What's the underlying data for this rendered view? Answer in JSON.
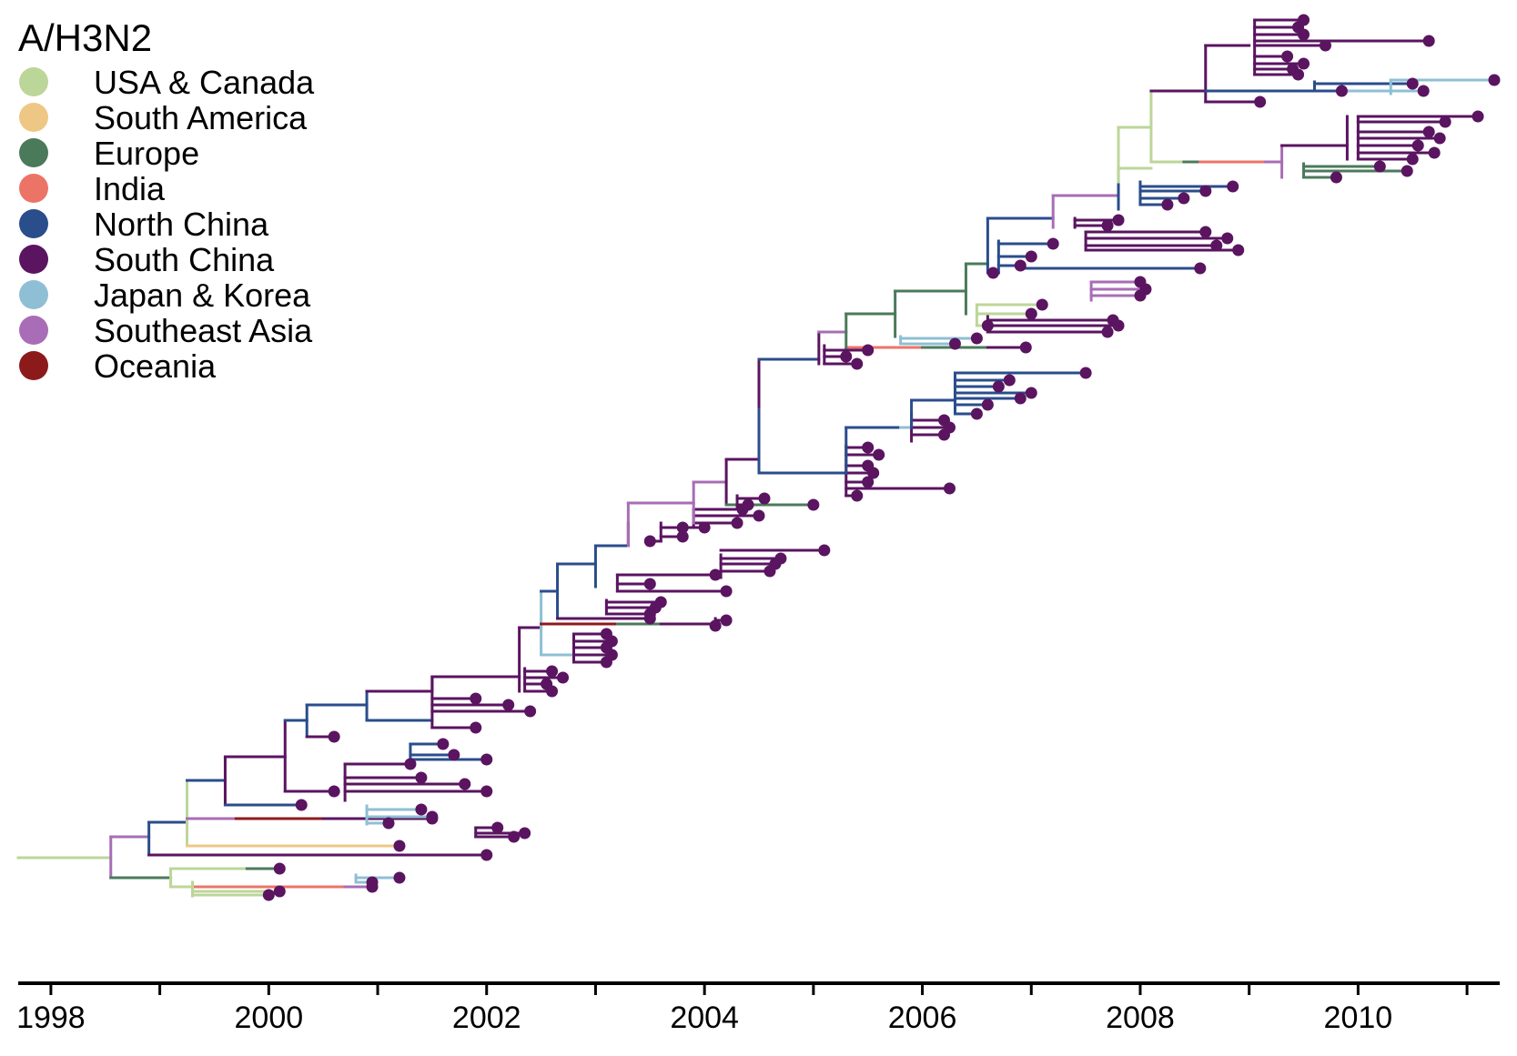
{
  "title": "A/H3N2",
  "palette": {
    "USA & Canada": "#bcd699",
    "South America": "#efc785",
    "Europe": "#4b7a5b",
    "India": "#ec7467",
    "North China": "#2a4d8b",
    "South China": "#5a1460",
    "Japan & Korea": "#8fbfd4",
    "Southeast Asia": "#a86db6",
    "Oceania": "#8d1a1b"
  },
  "legend": [
    {
      "label": "USA & Canada",
      "color": "#bcd699"
    },
    {
      "label": "South America",
      "color": "#efc785"
    },
    {
      "label": "Europe",
      "color": "#4b7a5b"
    },
    {
      "label": "India",
      "color": "#ec7467"
    },
    {
      "label": "North China",
      "color": "#2a4d8b"
    },
    {
      "label": "South China",
      "color": "#5a1460"
    },
    {
      "label": "Japan & Korea",
      "color": "#8fbfd4"
    },
    {
      "label": "Southeast Asia",
      "color": "#a86db6"
    },
    {
      "label": "Oceania",
      "color": "#8d1a1b"
    }
  ],
  "axis": {
    "min": 1997.7,
    "max": 2011.3,
    "major_ticks": [
      "1998",
      "2000",
      "2002",
      "2004",
      "2006",
      "2008",
      "2010"
    ],
    "minor_step_years": 1
  },
  "tree": {
    "root_time": 1997.7,
    "note_trunk": [
      {
        "region": "USA & Canada",
        "from": 1997.7,
        "to": 1998.55
      },
      {
        "region": "Southeast Asia",
        "from": 1998.55,
        "to": 1998.9
      },
      {
        "region": "North China",
        "from": 1998.9,
        "to": 1999.25
      },
      {
        "region": "South China",
        "from": 1999.25,
        "to": 1999.6
      }
    ]
  }
}
